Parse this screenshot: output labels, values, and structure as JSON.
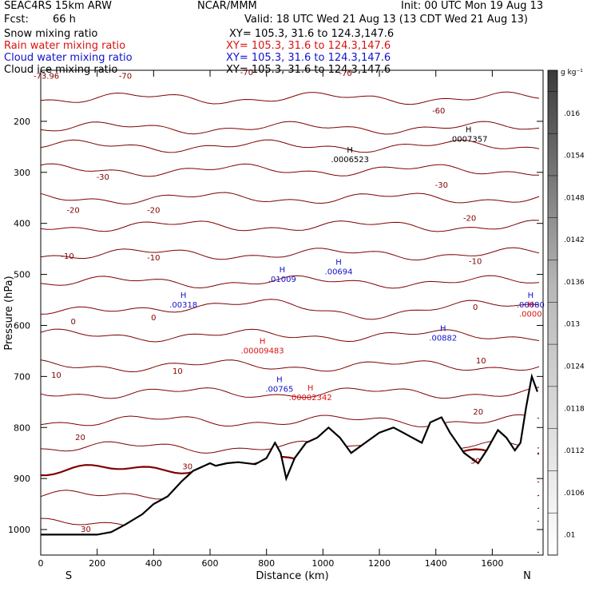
{
  "header": {
    "model": "SEAC4RS 15km ARW",
    "agency": "NCAR/MMM",
    "init": "Init: 00 UTC Mon 19 Aug 13",
    "fcst_label": "Fcst:",
    "fcst_value": "66 h",
    "valid": "Valid: 18 UTC Wed 21 Aug 13 (13 CDT Wed 21 Aug 13)",
    "fields": [
      {
        "label": "Snow mixing ratio",
        "xy": "XY= 105.3, 31.6 to 124.3,147.6",
        "color": "#000000"
      },
      {
        "label": "Rain water mixing ratio",
        "xy": "XY= 105.3, 31.6 to 124.3,147.6",
        "color": "#dd1111"
      },
      {
        "label": "Cloud water mixing ratio",
        "xy": "XY= 105.3, 31.6 to 124.3,147.6",
        "color": "#1111cc"
      },
      {
        "label": "Cloud ice mixing ratio",
        "xy": "XY= 105.3, 31.6 to 124.3,147.6",
        "color": "#000000"
      }
    ]
  },
  "chart_data": {
    "type": "cross-section",
    "xlabel": "Distance (km)",
    "ylabel": "Pressure (hPa)",
    "xlim": [
      0,
      1780
    ],
    "ylim": [
      1050,
      100
    ],
    "x_ticks": [
      0,
      200,
      400,
      600,
      800,
      1000,
      1200,
      1400,
      1600
    ],
    "y_ticks": [
      100,
      200,
      300,
      400,
      500,
      600,
      700,
      800,
      900,
      1000
    ],
    "x_end_labels": {
      "left": "S",
      "right": "N"
    },
    "colorbar": {
      "unit": "g kg⁻¹",
      "labels": [
        ".01",
        ".0106",
        ".0112",
        ".0118",
        ".0124",
        ".013",
        ".0136",
        ".0142",
        ".0148",
        ".0154",
        ".016"
      ]
    },
    "isotherm_labels": [
      {
        "x": 20,
        "p": 112,
        "text": "-73.96"
      },
      {
        "x": 300,
        "p": 112,
        "text": "-70"
      },
      {
        "x": 730,
        "p": 105,
        "text": "-70"
      },
      {
        "x": 1080,
        "p": 106,
        "text": "-70"
      },
      {
        "x": 1410,
        "p": 180,
        "text": "-60"
      },
      {
        "x": 220,
        "p": 310,
        "text": "-30"
      },
      {
        "x": 1420,
        "p": 325,
        "text": "-30"
      },
      {
        "x": 115,
        "p": 375,
        "text": "-20"
      },
      {
        "x": 400,
        "p": 375,
        "text": "-20"
      },
      {
        "x": 1520,
        "p": 390,
        "text": "-20"
      },
      {
        "x": 95,
        "p": 465,
        "text": "-10"
      },
      {
        "x": 400,
        "p": 468,
        "text": "-10"
      },
      {
        "x": 1540,
        "p": 475,
        "text": "-10"
      },
      {
        "x": 115,
        "p": 593,
        "text": "0"
      },
      {
        "x": 400,
        "p": 585,
        "text": "0"
      },
      {
        "x": 1540,
        "p": 565,
        "text": "0"
      },
      {
        "x": 55,
        "p": 698,
        "text": "10"
      },
      {
        "x": 485,
        "p": 690,
        "text": "10"
      },
      {
        "x": 1560,
        "p": 670,
        "text": "10"
      },
      {
        "x": 140,
        "p": 820,
        "text": "20"
      },
      {
        "x": 1550,
        "p": 770,
        "text": "20"
      },
      {
        "x": 160,
        "p": 1000,
        "text": "30"
      },
      {
        "x": 520,
        "p": 877,
        "text": "30"
      },
      {
        "x": 1540,
        "p": 866,
        "text": "30"
      }
    ],
    "maxima": [
      {
        "x": 1090,
        "p": 275,
        "value": ".0006523",
        "field": "snow"
      },
      {
        "x": 1510,
        "p": 235,
        "value": ".0007357",
        "field": "snow"
      },
      {
        "x": 500,
        "p": 560,
        "value": ".00318",
        "field": "cloud_water"
      },
      {
        "x": 850,
        "p": 510,
        "value": ".01009",
        "field": "cloud_water"
      },
      {
        "x": 1050,
        "p": 495,
        "value": ".00694",
        "field": "cloud_water"
      },
      {
        "x": 1420,
        "p": 625,
        "value": ".00882",
        "field": "cloud_water"
      },
      {
        "x": 840,
        "p": 725,
        "value": ".00765",
        "field": "cloud_water"
      },
      {
        "x": 1730,
        "p": 560,
        "value": ".00080",
        "field": "cloud_water"
      },
      {
        "x": 780,
        "p": 650,
        "value": ".00009483",
        "field": "rain"
      },
      {
        "x": 950,
        "p": 742,
        "value": ".00002342",
        "field": "rain"
      },
      {
        "x": 1730,
        "p": 578,
        "value": ".0000",
        "field": "rain"
      }
    ],
    "terrain": {
      "x": [
        0,
        100,
        200,
        250,
        300,
        360,
        400,
        450,
        500,
        540,
        560,
        600,
        620,
        660,
        700,
        760,
        800,
        830,
        850,
        870,
        900,
        940,
        980,
        1020,
        1060,
        1100,
        1150,
        1200,
        1250,
        1300,
        1350,
        1380,
        1420,
        1450,
        1500,
        1550,
        1580,
        1600,
        1620,
        1650,
        1680,
        1700,
        1720,
        1740,
        1760
      ],
      "p": [
        1010,
        1010,
        1010,
        1005,
        990,
        970,
        950,
        935,
        905,
        885,
        880,
        870,
        875,
        870,
        868,
        872,
        860,
        830,
        850,
        900,
        860,
        830,
        820,
        800,
        820,
        850,
        830,
        810,
        800,
        815,
        830,
        790,
        780,
        810,
        850,
        870,
        845,
        825,
        805,
        820,
        845,
        830,
        760,
        700,
        730
      ]
    }
  }
}
